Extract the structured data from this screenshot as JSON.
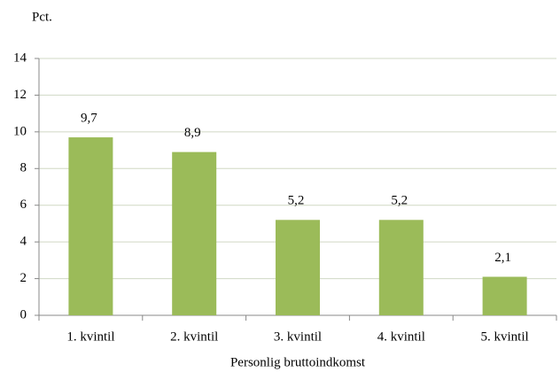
{
  "chart_data": {
    "type": "bar",
    "y_axis_label": "Pct.",
    "x_axis_label": "Personlig bruttoindkomst",
    "categories": [
      "1. kvintil",
      "2. kvintil",
      "3. kvintil",
      "4. kvintil",
      "5. kvintil"
    ],
    "values": [
      9.7,
      8.9,
      5.2,
      5.2,
      2.1
    ],
    "value_labels": [
      "9,7",
      "8,9",
      "5,2",
      "5,2",
      "2,1"
    ],
    "color": "#9bbb59",
    "ylim": [
      0,
      14
    ],
    "yticks": [
      0,
      2,
      4,
      6,
      8,
      10,
      12,
      14
    ],
    "grid": true
  }
}
